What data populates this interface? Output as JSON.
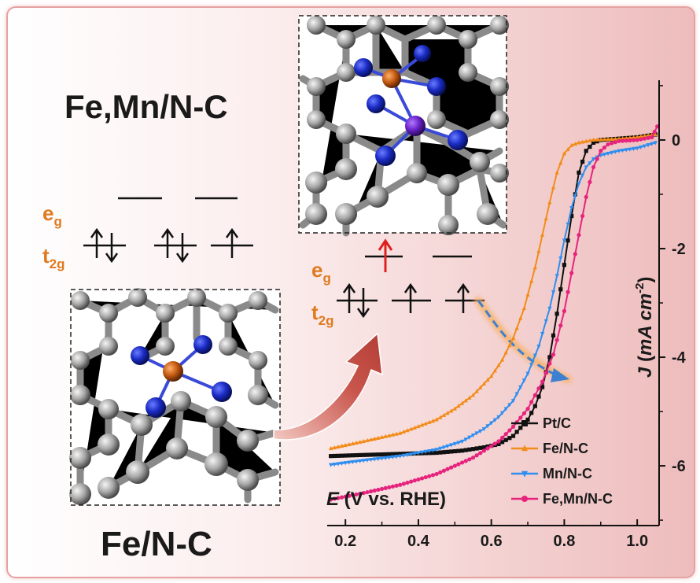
{
  "labels": {
    "fe_mn_nc": "Fe,Mn/N-C",
    "fe_nc": "Fe/N-C",
    "eg_main": "e",
    "eg_sub": "g",
    "t2g_main": "t",
    "t2g_sub": "2g"
  },
  "colors": {
    "Pt/C": "#111111",
    "Fe/N-C": "#f28c1a",
    "Mn/N-C": "#2f8ef0",
    "Fe,Mn/N-C": "#e6237d",
    "orbital_label": "#e07a1f",
    "arrow_big": "#c0504d",
    "arrow_red": "#e02020",
    "arrow_dashed": "#3d7fd1"
  },
  "chart_data": {
    "type": "line",
    "xlabel_var": "E",
    "xlabel_rest": " (V vs. RHE)",
    "ylabel_var": "J",
    "ylabel_unit": "mA cm",
    "ylabel_exp": "-2",
    "xlim": [
      0.15,
      1.06
    ],
    "ylim": [
      -7.1,
      1.1
    ],
    "xticks": [
      0.2,
      0.4,
      0.6,
      0.8,
      1.0
    ],
    "xtick_labels": [
      "0.2",
      "0.4",
      "0.6",
      "0.8",
      "1.0"
    ],
    "yticks": [
      0,
      -2,
      -4,
      -6
    ],
    "ytick_labels": [
      "0",
      "-2",
      "-4",
      "-6"
    ],
    "legend_position": "bottom-right",
    "series": [
      {
        "name": "Pt/C",
        "marker": "square",
        "x": [
          0.16,
          0.25,
          0.35,
          0.45,
          0.52,
          0.58,
          0.62,
          0.66,
          0.7,
          0.72,
          0.74,
          0.76,
          0.78,
          0.8,
          0.82,
          0.84,
          0.86,
          0.88,
          0.9,
          0.94,
          1.0,
          1.05
        ],
        "y": [
          -5.82,
          -5.8,
          -5.78,
          -5.76,
          -5.72,
          -5.66,
          -5.6,
          -5.45,
          -5.15,
          -4.9,
          -4.55,
          -4.0,
          -3.2,
          -2.3,
          -1.4,
          -0.6,
          -0.2,
          -0.05,
          0.0,
          0.02,
          0.05,
          0.1
        ]
      },
      {
        "name": "Fe/N-C",
        "marker": "triangle-up",
        "x": [
          0.16,
          0.25,
          0.35,
          0.45,
          0.5,
          0.55,
          0.6,
          0.63,
          0.66,
          0.69,
          0.72,
          0.74,
          0.76,
          0.78,
          0.8,
          0.82,
          0.84,
          0.88,
          0.95,
          1.0,
          1.05
        ],
        "y": [
          -5.68,
          -5.55,
          -5.4,
          -5.15,
          -4.95,
          -4.7,
          -4.35,
          -4.05,
          -3.65,
          -3.1,
          -2.35,
          -1.75,
          -1.15,
          -0.6,
          -0.25,
          -0.1,
          -0.05,
          0.0,
          0.02,
          0.05,
          0.1
        ]
      },
      {
        "name": "Mn/N-C",
        "marker": "triangle-down",
        "x": [
          0.16,
          0.25,
          0.35,
          0.45,
          0.52,
          0.58,
          0.62,
          0.66,
          0.7,
          0.73,
          0.76,
          0.78,
          0.8,
          0.82,
          0.84,
          0.86,
          0.88,
          0.9,
          0.95,
          1.0,
          1.05
        ],
        "y": [
          -5.98,
          -5.9,
          -5.82,
          -5.7,
          -5.55,
          -5.32,
          -5.1,
          -4.8,
          -4.3,
          -3.8,
          -3.1,
          -2.5,
          -1.85,
          -1.25,
          -0.8,
          -0.5,
          -0.35,
          -0.28,
          -0.2,
          -0.15,
          -0.05
        ]
      },
      {
        "name": "Fe,Mn/N-C",
        "marker": "circle",
        "x": [
          0.16,
          0.25,
          0.35,
          0.45,
          0.55,
          0.62,
          0.66,
          0.7,
          0.74,
          0.77,
          0.8,
          0.82,
          0.84,
          0.86,
          0.88,
          0.9,
          0.92,
          0.95,
          1.0,
          1.04,
          1.055
        ],
        "y": [
          -6.62,
          -6.5,
          -6.35,
          -6.15,
          -5.85,
          -5.55,
          -5.28,
          -4.95,
          -4.45,
          -3.95,
          -3.15,
          -2.45,
          -1.75,
          -1.05,
          -0.5,
          -0.2,
          -0.08,
          -0.02,
          0.0,
          0.05,
          0.25
        ]
      }
    ]
  }
}
